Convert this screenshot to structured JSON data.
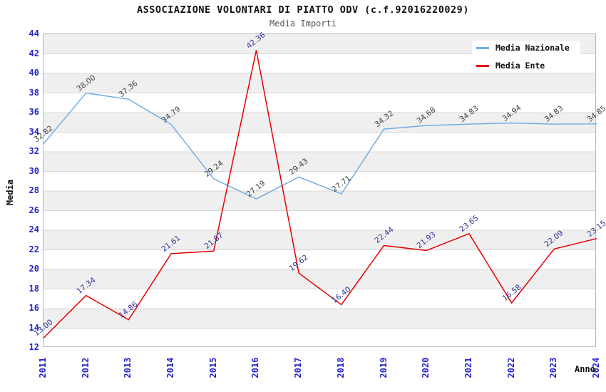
{
  "header": {
    "title": "ASSOCIAZIONE VOLONTARI DI PIATTO ODV (c.f.92016220029)",
    "subtitle": "Media Importi"
  },
  "chart_data": {
    "type": "line",
    "title": "ASSOCIAZIONE VOLONTARI DI PIATTO ODV (c.f.92016220029)",
    "subtitle": "Media Importi",
    "xlabel": "Anno",
    "ylabel": "Media",
    "x": [
      2011,
      2012,
      2013,
      2014,
      2015,
      2016,
      2017,
      2018,
      2019,
      2020,
      2021,
      2022,
      2023,
      2024
    ],
    "ylim": [
      12,
      44
    ],
    "ytick_step": 2,
    "grid": true,
    "legend_position": "top-right",
    "colors": {
      "axis_tick_labels": "#2222cc",
      "band_gray": "#efefef",
      "gridline": "#d8d8d8",
      "plot_border": "#b6b6b6"
    },
    "series": [
      {
        "name": "Media Nazionale",
        "color": "#74ade4",
        "label_color": "#444444",
        "values": [
          32.82,
          38.0,
          37.36,
          34.79,
          29.24,
          27.19,
          29.43,
          27.71,
          34.32,
          34.68,
          34.83,
          34.94,
          34.83,
          34.85
        ]
      },
      {
        "name": "Media Ente",
        "color": "#e60000",
        "label_color": "#333399",
        "values": [
          13.0,
          17.34,
          14.86,
          21.61,
          21.87,
          42.36,
          19.62,
          16.4,
          22.44,
          21.93,
          23.65,
          16.58,
          22.09,
          23.15
        ]
      }
    ]
  }
}
